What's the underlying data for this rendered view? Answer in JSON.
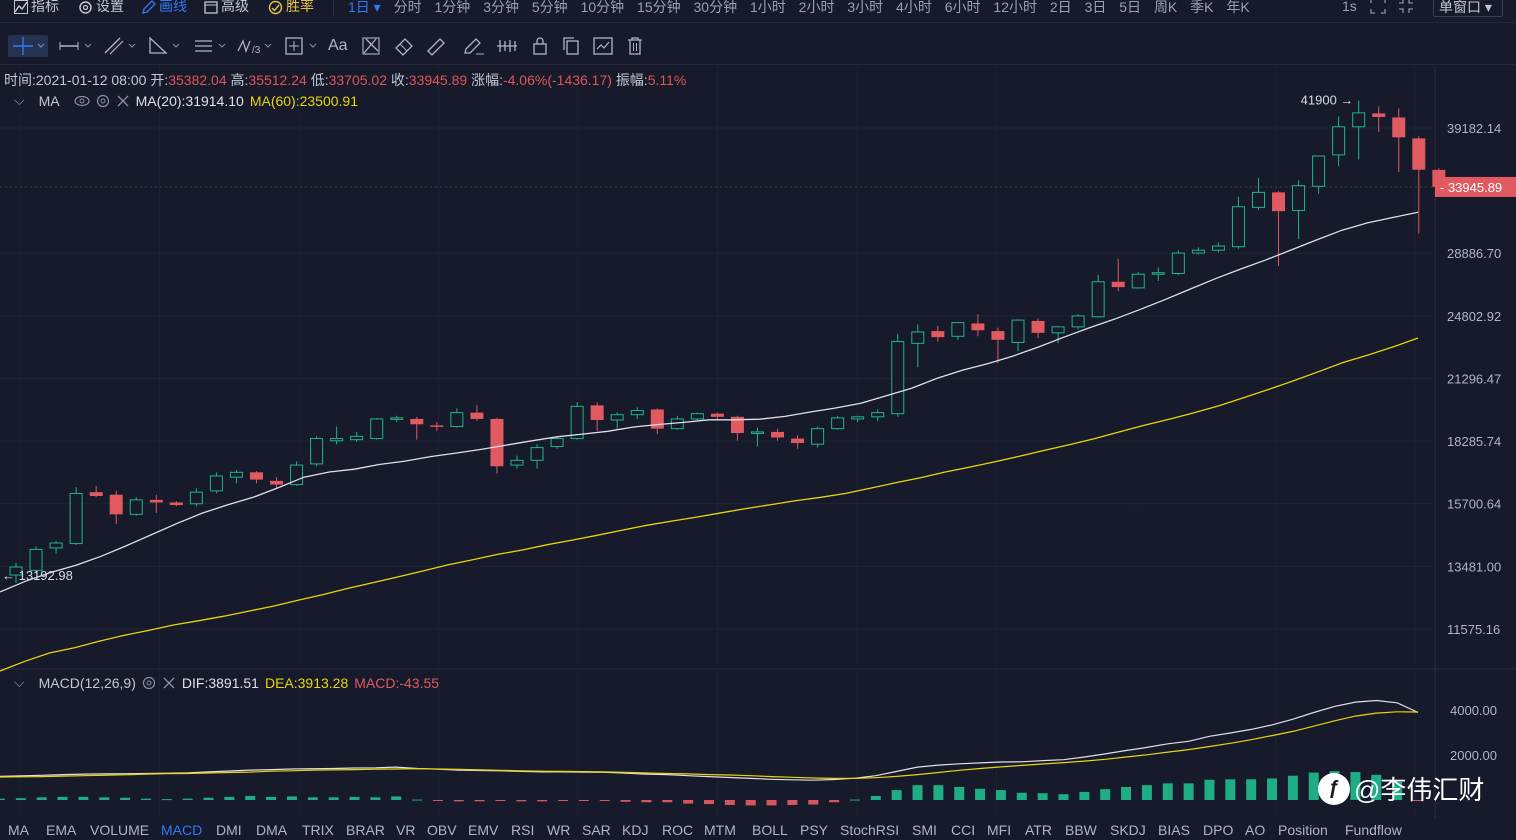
{
  "topbar": {
    "indicators_label": "指标",
    "settings_label": "设置",
    "draw_label": "画线",
    "advanced_label": "高级",
    "winrate_label": "胜率",
    "current_interval": "1日",
    "intervals": [
      "分时",
      "1分钟",
      "3分钟",
      "5分钟",
      "10分钟",
      "15分钟",
      "30分钟",
      "1小时",
      "2小时",
      "3小时",
      "4小时",
      "6小时",
      "12小时",
      "2日",
      "3日",
      "5日",
      "周K",
      "季K",
      "年K"
    ],
    "refresh": "1s",
    "window_mode": "单窗口"
  },
  "toolbar": {
    "icons": [
      "crosshair-icon",
      "horizontal-line-icon",
      "trend-lines-icon",
      "angle-icon",
      "parallel-lines-icon",
      "fibonacci-icon",
      "measure-icon",
      "text-icon",
      "brush-icon",
      "eraser-icon",
      "ruler-icon",
      "pencil-icon",
      "pattern-icon",
      "lock-icon",
      "copy-icon",
      "screenshot-icon",
      "delete-icon"
    ],
    "text_tool_label": "Aa"
  },
  "ohlc": {
    "time_label": "时间:",
    "time": "2021-01-12 08:00",
    "open_label": "开:",
    "open": "35382.04",
    "high_label": "高:",
    "high": "35512.24",
    "low_label": "低:",
    "low": "33705.02",
    "close_label": "收:",
    "close": "33945.89",
    "change_label": "涨幅:",
    "change": "-4.06%(-1436.17)",
    "amp_label": "振幅:",
    "amp": "5.11%"
  },
  "ma_legend": {
    "name": "MA",
    "ma20": "MA(20):31914.10",
    "ma60": "MA(60):23500.91"
  },
  "macd_legend": {
    "name": "MACD(12,26,9)",
    "dif": "DIF:3891.51",
    "dea": "DEA:3913.28",
    "macd": "MACD:-43.55"
  },
  "price_axis": [
    "39182.14",
    "33945.89",
    "28886.70",
    "24802.92",
    "21296.47",
    "18285.74",
    "15700.64",
    "13481.00",
    "11575.16"
  ],
  "macd_axis": [
    "4000.00",
    "2000.00"
  ],
  "annotations": {
    "high": "41900",
    "low": "13192.98",
    "current": "33945.89"
  },
  "bottom_tabs": [
    "MA",
    "EMA",
    "VOLUME",
    "MACD",
    "DMI",
    "DMA",
    "TRIX",
    "BRAR",
    "VR",
    "OBV",
    "EMV",
    "RSI",
    "WR",
    "SAR",
    "KDJ",
    "ROC",
    "MTM",
    "BOLL",
    "PSY",
    "StochRSI",
    "SMI",
    "CCI",
    "MFI",
    "ATR",
    "BBW",
    "SKDJ",
    "BIAS",
    "DPO",
    "AO",
    "Position",
    "Fundflow"
  ],
  "active_tab": "MACD",
  "watermark": "@李伟汇财",
  "colors": {
    "up": "#1fb58a",
    "down": "#e05a5f",
    "ma20": "#e0e0e6",
    "ma60": "#e8d60a",
    "accent": "#2f7bf6",
    "bg": "#161a2b"
  },
  "chart_data": {
    "type": "candlestick",
    "interval": "1日",
    "price_scale": "log",
    "candles": [
      {
        "o": 13200,
        "h": 13600,
        "l": 12950,
        "c": 13460
      },
      {
        "o": 13350,
        "h": 14150,
        "l": 13250,
        "c": 14050
      },
      {
        "o": 14100,
        "h": 14350,
        "l": 13900,
        "c": 14270
      },
      {
        "o": 14250,
        "h": 16350,
        "l": 14200,
        "c": 16100
      },
      {
        "o": 16150,
        "h": 16400,
        "l": 15950,
        "c": 16000
      },
      {
        "o": 16050,
        "h": 16200,
        "l": 14950,
        "c": 15300
      },
      {
        "o": 15300,
        "h": 15950,
        "l": 15250,
        "c": 15850
      },
      {
        "o": 15850,
        "h": 16050,
        "l": 15350,
        "c": 15750
      },
      {
        "o": 15750,
        "h": 15800,
        "l": 15600,
        "c": 15650
      },
      {
        "o": 15700,
        "h": 16300,
        "l": 15600,
        "c": 16150
      },
      {
        "o": 16200,
        "h": 16950,
        "l": 16100,
        "c": 16800
      },
      {
        "o": 16750,
        "h": 17050,
        "l": 16500,
        "c": 16950
      },
      {
        "o": 16950,
        "h": 17000,
        "l": 16500,
        "c": 16650
      },
      {
        "o": 16600,
        "h": 16750,
        "l": 16300,
        "c": 16450
      },
      {
        "o": 16450,
        "h": 17400,
        "l": 16400,
        "c": 17250
      },
      {
        "o": 17300,
        "h": 18500,
        "l": 17200,
        "c": 18400
      },
      {
        "o": 18300,
        "h": 18950,
        "l": 18150,
        "c": 18400
      },
      {
        "o": 18350,
        "h": 18700,
        "l": 18250,
        "c": 18500
      },
      {
        "o": 18400,
        "h": 19350,
        "l": 18350,
        "c": 19300
      },
      {
        "o": 19300,
        "h": 19450,
        "l": 19150,
        "c": 19350
      },
      {
        "o": 19300,
        "h": 19400,
        "l": 18350,
        "c": 19050
      },
      {
        "o": 19000,
        "h": 19150,
        "l": 18750,
        "c": 18950
      },
      {
        "o": 18950,
        "h": 19800,
        "l": 18900,
        "c": 19600
      },
      {
        "o": 19600,
        "h": 19950,
        "l": 19200,
        "c": 19300
      },
      {
        "o": 19300,
        "h": 19350,
        "l": 16900,
        "c": 17200
      },
      {
        "o": 17250,
        "h": 17650,
        "l": 17100,
        "c": 17450
      },
      {
        "o": 17450,
        "h": 18150,
        "l": 17100,
        "c": 18000
      },
      {
        "o": 18050,
        "h": 18450,
        "l": 17950,
        "c": 18400
      },
      {
        "o": 18400,
        "h": 20100,
        "l": 18350,
        "c": 19900
      },
      {
        "o": 19950,
        "h": 20100,
        "l": 18750,
        "c": 19250
      },
      {
        "o": 19250,
        "h": 19600,
        "l": 18850,
        "c": 19500
      },
      {
        "o": 19500,
        "h": 19850,
        "l": 19300,
        "c": 19700
      },
      {
        "o": 19750,
        "h": 19800,
        "l": 18600,
        "c": 18850
      },
      {
        "o": 18850,
        "h": 19450,
        "l": 18800,
        "c": 19300
      },
      {
        "o": 19300,
        "h": 19600,
        "l": 19200,
        "c": 19550
      },
      {
        "o": 19550,
        "h": 19600,
        "l": 19250,
        "c": 19400
      },
      {
        "o": 19400,
        "h": 19450,
        "l": 18300,
        "c": 18650
      },
      {
        "o": 18650,
        "h": 18900,
        "l": 18050,
        "c": 18700
      },
      {
        "o": 18700,
        "h": 18850,
        "l": 18300,
        "c": 18450
      },
      {
        "o": 18400,
        "h": 18550,
        "l": 17950,
        "c": 18200
      },
      {
        "o": 18150,
        "h": 18950,
        "l": 18000,
        "c": 18850
      },
      {
        "o": 18850,
        "h": 19450,
        "l": 18800,
        "c": 19350
      },
      {
        "o": 19300,
        "h": 19450,
        "l": 19150,
        "c": 19400
      },
      {
        "o": 19400,
        "h": 19750,
        "l": 19200,
        "c": 19600
      },
      {
        "o": 19550,
        "h": 23750,
        "l": 19400,
        "c": 23300
      },
      {
        "o": 23200,
        "h": 24300,
        "l": 21900,
        "c": 23850
      },
      {
        "o": 23900,
        "h": 24200,
        "l": 23300,
        "c": 23550
      },
      {
        "o": 23600,
        "h": 24250,
        "l": 23400,
        "c": 24400
      },
      {
        "o": 24350,
        "h": 24900,
        "l": 23600,
        "c": 23950
      },
      {
        "o": 23900,
        "h": 24100,
        "l": 22100,
        "c": 23400
      },
      {
        "o": 23250,
        "h": 24600,
        "l": 22750,
        "c": 24550
      },
      {
        "o": 24500,
        "h": 24650,
        "l": 23500,
        "c": 23800
      },
      {
        "o": 23800,
        "h": 24200,
        "l": 23200,
        "c": 24150
      },
      {
        "o": 24150,
        "h": 24900,
        "l": 24000,
        "c": 24800
      },
      {
        "o": 24750,
        "h": 27400,
        "l": 24700,
        "c": 26950
      },
      {
        "o": 26950,
        "h": 28500,
        "l": 26350,
        "c": 26600
      },
      {
        "o": 26550,
        "h": 27600,
        "l": 26500,
        "c": 27450
      },
      {
        "o": 27450,
        "h": 27900,
        "l": 27000,
        "c": 27550
      },
      {
        "o": 27500,
        "h": 29100,
        "l": 27400,
        "c": 28900
      },
      {
        "o": 28900,
        "h": 29300,
        "l": 28800,
        "c": 29100
      },
      {
        "o": 29100,
        "h": 29650,
        "l": 28950,
        "c": 29400
      },
      {
        "o": 29350,
        "h": 33150,
        "l": 29200,
        "c": 32350
      },
      {
        "o": 32300,
        "h": 34700,
        "l": 32100,
        "c": 33500
      },
      {
        "o": 33500,
        "h": 33600,
        "l": 28000,
        "c": 32000
      },
      {
        "o": 32050,
        "h": 34500,
        "l": 29900,
        "c": 34050
      },
      {
        "o": 34000,
        "h": 36600,
        "l": 33400,
        "c": 36600
      },
      {
        "o": 36700,
        "h": 40300,
        "l": 35700,
        "c": 39300
      },
      {
        "o": 39300,
        "h": 41900,
        "l": 36300,
        "c": 40650
      },
      {
        "o": 40600,
        "h": 41300,
        "l": 38800,
        "c": 40250
      },
      {
        "o": 40200,
        "h": 41100,
        "l": 35200,
        "c": 38300
      },
      {
        "o": 38200,
        "h": 38400,
        "l": 30300,
        "c": 35400
      },
      {
        "o": 35382.04,
        "h": 35512.24,
        "l": 33705.02,
        "c": 33945.89
      }
    ],
    "ma20": [
      12670,
      13000,
      13280,
      13520,
      13820,
      14180,
      14570,
      14970,
      15350,
      15660,
      15950,
      16330,
      16750,
      16960,
      17080,
      17280,
      17420,
      17610,
      17760,
      17920,
      18110,
      18300,
      18480,
      18600,
      18730,
      18920,
      19040,
      19140,
      19260,
      19260,
      19290,
      19420,
      19630,
      19820,
      20050,
      20420,
      20800,
      21300,
      21730,
      22080,
      22490,
      22990,
      23540,
      24080,
      24600,
      25180,
      25800,
      26470,
      27150,
      27800,
      28430,
      29120,
      29840,
      30550,
      31100,
      31510,
      31914.1
    ],
    "ma60": [
      10450,
      10700,
      10920,
      11060,
      11240,
      11400,
      11540,
      11690,
      11810,
      11940,
      12090,
      12240,
      12420,
      12590,
      12780,
      12960,
      13140,
      13330,
      13530,
      13700,
      13880,
      14030,
      14210,
      14370,
      14540,
      14720,
      14900,
      15050,
      15200,
      15360,
      15520,
      15670,
      15820,
      15950,
      16100,
      16310,
      16520,
      16730,
      16960,
      17170,
      17390,
      17630,
      17880,
      18130,
      18400,
      18700,
      19010,
      19290,
      19590,
      19930,
      20330,
      20740,
      21180,
      21650,
      22150,
      22550,
      23000,
      23500.91
    ],
    "macd": {
      "dif": [
        1050,
        1070,
        1100,
        1130,
        1150,
        1160,
        1170,
        1180,
        1190,
        1210,
        1250,
        1290,
        1330,
        1350,
        1380,
        1390,
        1400,
        1420,
        1430,
        1460,
        1400,
        1370,
        1330,
        1310,
        1300,
        1270,
        1250,
        1250,
        1240,
        1230,
        1190,
        1150,
        1130,
        1080,
        1040,
        1000,
        960,
        920,
        900,
        880,
        910,
        970,
        1080,
        1270,
        1460,
        1550,
        1610,
        1650,
        1690,
        1700,
        1750,
        1790,
        1910,
        2050,
        2200,
        2340,
        2500,
        2610,
        2830,
        2980,
        3140,
        3340,
        3590,
        3890,
        4160,
        4350,
        4420,
        4320,
        3891.51
      ],
      "dea": [
        1020,
        1030,
        1040,
        1060,
        1080,
        1100,
        1120,
        1150,
        1170,
        1180,
        1200,
        1220,
        1240,
        1280,
        1300,
        1330,
        1340,
        1350,
        1370,
        1380,
        1390,
        1380,
        1360,
        1340,
        1320,
        1300,
        1280,
        1270,
        1260,
        1250,
        1230,
        1200,
        1180,
        1160,
        1130,
        1110,
        1080,
        1040,
        1010,
        980,
        960,
        960,
        990,
        1050,
        1130,
        1220,
        1320,
        1400,
        1470,
        1540,
        1600,
        1660,
        1730,
        1810,
        1910,
        2010,
        2130,
        2240,
        2380,
        2520,
        2680,
        2860,
        3050,
        3280,
        3520,
        3730,
        3860,
        3920,
        3913.28
      ],
      "hist_note": "histogram bars follow DIF-DEA sign",
      "last": -43.55
    }
  }
}
